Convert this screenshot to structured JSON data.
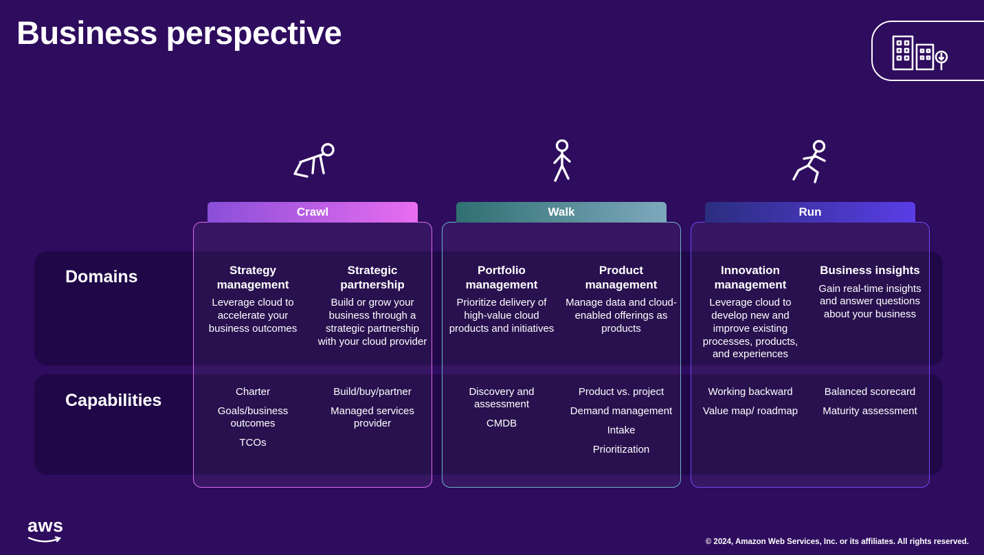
{
  "page": {
    "title": "Business perspective",
    "footer": "© 2024, Amazon Web Services, Inc. or its affiliates. All rights reserved.",
    "logo_text": "aws"
  },
  "row_labels": {
    "domains": "Domains",
    "capabilities": "Capabilities"
  },
  "colors": {
    "background": "#2E0C5E",
    "crawl_gradient_from": "#8A4FD8",
    "crawl_gradient_to": "#E86DF0",
    "crawl_border": "#DD6BEF",
    "walk_gradient_from": "#2F6F72",
    "walk_gradient_to": "#7EA9BD",
    "walk_border": "#69B7C9",
    "run_gradient_from": "#2B2E7F",
    "run_gradient_to": "#5A3DE6",
    "run_border": "#6A4BF5"
  },
  "phases": [
    {
      "label": "Crawl",
      "icon": "crawl-person-icon",
      "domains": [
        {
          "title": "Strategy management",
          "desc": "Leverage cloud to accelerate your business outcomes"
        },
        {
          "title": "Strategic partnership",
          "desc": "Build or grow your business through a strategic partnership with your cloud provider"
        }
      ],
      "capabilities": [
        {
          "items": [
            "Charter",
            "Goals/business outcomes",
            "TCOs"
          ]
        },
        {
          "items": [
            "Build/buy/partner",
            "Managed services provider"
          ]
        }
      ]
    },
    {
      "label": "Walk",
      "icon": "walk-person-icon",
      "domains": [
        {
          "title": "Portfolio management",
          "desc": "Prioritize delivery of high-value cloud products and initiatives"
        },
        {
          "title": "Product management",
          "desc": "Manage data and cloud-enabled offerings as products"
        }
      ],
      "capabilities": [
        {
          "items": [
            "Discovery and assessment",
            "CMDB"
          ]
        },
        {
          "items": [
            "Product vs. project",
            "Demand management",
            "Intake",
            "Prioritization"
          ]
        }
      ]
    },
    {
      "label": "Run",
      "icon": "run-person-icon",
      "domains": [
        {
          "title": "Innovation management",
          "desc": "Leverage cloud to develop new and improve existing processes, products, and experiences"
        },
        {
          "title": "Business insights",
          "desc": "Gain real-time insights and answer questions about your business"
        }
      ],
      "capabilities": [
        {
          "items": [
            "Working backward",
            "Value map/ roadmap"
          ]
        },
        {
          "items": [
            "Balanced scorecard",
            "Maturity assessment"
          ]
        }
      ]
    }
  ]
}
